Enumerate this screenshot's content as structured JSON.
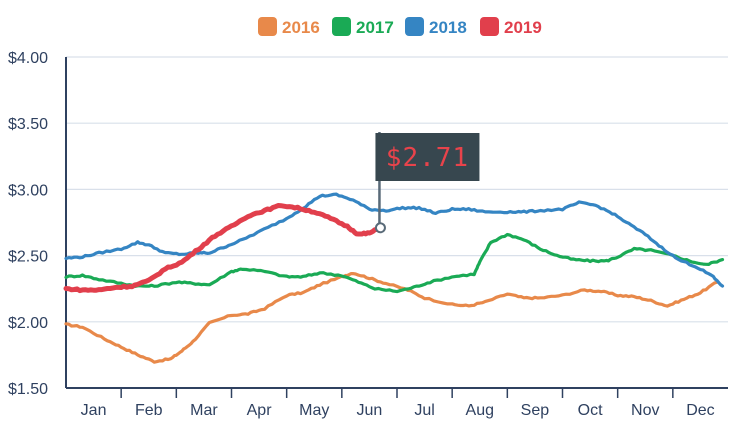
{
  "chart_data": {
    "type": "line",
    "title": "",
    "xlabel": "",
    "ylabel": "",
    "x_categories": [
      "Jan",
      "Feb",
      "Mar",
      "Apr",
      "May",
      "Jun",
      "Jul",
      "Aug",
      "Sep",
      "Oct",
      "Nov",
      "Dec"
    ],
    "y_ticks": [
      "$1.50",
      "$2.00",
      "$2.50",
      "$3.00",
      "$3.50",
      "$4.00"
    ],
    "y_tick_values": [
      1.5,
      2.0,
      2.5,
      3.0,
      3.5,
      4.0
    ],
    "ylim": [
      1.5,
      4.0
    ],
    "x_unit": "month index (0 = start of Jan, 12 = end of Dec)",
    "grid": "horizontal",
    "legend_position": "top-center",
    "annotation": {
      "label": "$2.71",
      "value": 2.71,
      "series": "2019"
    },
    "series": [
      {
        "name": "2016",
        "color": "#e8894a",
        "x": [
          0.0,
          0.3,
          0.7,
          1.0,
          1.3,
          1.6,
          1.9,
          2.1,
          2.3,
          2.6,
          3.0,
          3.3,
          3.6,
          4.0,
          4.3,
          4.6,
          5.0,
          5.2,
          5.5,
          5.8,
          6.2,
          6.5,
          7.0,
          7.3,
          7.6,
          8.0,
          8.3,
          8.6,
          9.0,
          9.4,
          9.7,
          10.0,
          10.3,
          10.6,
          10.9,
          11.2,
          11.5,
          11.8
        ],
        "values": [
          1.98,
          1.96,
          1.87,
          1.81,
          1.75,
          1.7,
          1.72,
          1.78,
          1.85,
          1.99,
          2.05,
          2.06,
          2.1,
          2.2,
          2.22,
          2.28,
          2.34,
          2.37,
          2.33,
          2.29,
          2.24,
          2.18,
          2.13,
          2.12,
          2.15,
          2.21,
          2.18,
          2.18,
          2.2,
          2.24,
          2.23,
          2.2,
          2.19,
          2.16,
          2.12,
          2.17,
          2.22,
          2.3
        ]
      },
      {
        "name": "2017",
        "color": "#1aaa55",
        "x": [
          0.0,
          0.3,
          0.6,
          1.0,
          1.3,
          1.6,
          2.0,
          2.3,
          2.6,
          3.0,
          3.2,
          3.6,
          4.0,
          4.3,
          4.6,
          5.0,
          5.3,
          5.6,
          6.0,
          6.3,
          6.6,
          7.0,
          7.4,
          7.5,
          7.7,
          8.0,
          8.3,
          8.6,
          8.9,
          9.2,
          9.5,
          9.8,
          10.0,
          10.3,
          10.6,
          11.0,
          11.3,
          11.6,
          11.9
        ],
        "values": [
          2.34,
          2.35,
          2.32,
          2.29,
          2.27,
          2.27,
          2.3,
          2.29,
          2.28,
          2.38,
          2.4,
          2.38,
          2.34,
          2.34,
          2.37,
          2.35,
          2.3,
          2.25,
          2.23,
          2.26,
          2.3,
          2.34,
          2.36,
          2.45,
          2.6,
          2.66,
          2.62,
          2.55,
          2.5,
          2.47,
          2.46,
          2.46,
          2.49,
          2.55,
          2.54,
          2.5,
          2.46,
          2.43,
          2.47
        ]
      },
      {
        "name": "2018",
        "color": "#3585c3",
        "x": [
          0.0,
          0.3,
          0.6,
          1.0,
          1.3,
          1.5,
          1.8,
          2.1,
          2.4,
          2.6,
          2.9,
          3.2,
          3.6,
          4.0,
          4.3,
          4.6,
          4.9,
          5.2,
          5.5,
          5.8,
          6.1,
          6.4,
          6.7,
          7.0,
          7.3,
          7.6,
          8.0,
          8.3,
          8.6,
          9.0,
          9.3,
          9.6,
          9.9,
          10.2,
          10.5,
          10.8,
          11.1,
          11.4,
          11.7,
          11.9
        ],
        "values": [
          2.48,
          2.49,
          2.52,
          2.55,
          2.6,
          2.58,
          2.52,
          2.51,
          2.52,
          2.52,
          2.57,
          2.62,
          2.7,
          2.78,
          2.86,
          2.95,
          2.96,
          2.92,
          2.85,
          2.84,
          2.86,
          2.86,
          2.82,
          2.85,
          2.85,
          2.83,
          2.83,
          2.83,
          2.84,
          2.85,
          2.9,
          2.88,
          2.82,
          2.74,
          2.66,
          2.56,
          2.47,
          2.42,
          2.35,
          2.27
        ]
      },
      {
        "name": "2019",
        "color": "#e13f4c",
        "x": [
          0.0,
          0.3,
          0.6,
          0.9,
          1.2,
          1.5,
          1.8,
          2.1,
          2.4,
          2.7,
          3.0,
          3.3,
          3.6,
          3.9,
          4.2,
          4.5,
          4.8,
          5.1,
          5.3,
          5.5,
          5.7
        ],
        "values": [
          2.25,
          2.24,
          2.24,
          2.26,
          2.27,
          2.31,
          2.4,
          2.45,
          2.55,
          2.65,
          2.72,
          2.8,
          2.84,
          2.88,
          2.86,
          2.83,
          2.78,
          2.72,
          2.66,
          2.67,
          2.71
        ]
      }
    ]
  }
}
